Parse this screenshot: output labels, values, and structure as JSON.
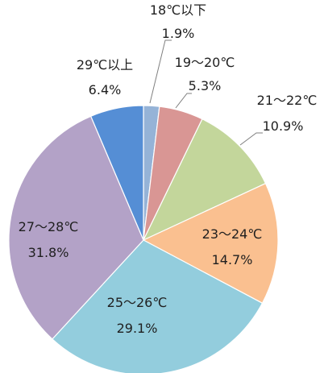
{
  "chart_data": {
    "type": "pie",
    "title": "",
    "slices": [
      {
        "label": "18℃以下",
        "value": 1.9,
        "value_text": "1.9%",
        "color": "#95B3D7"
      },
      {
        "label": "19～20℃",
        "value": 5.3,
        "value_text": "5.3%",
        "color": "#D99694"
      },
      {
        "label": "21～22℃",
        "value": 10.9,
        "value_text": "10.9%",
        "color": "#C3D69B"
      },
      {
        "label": "23～24℃",
        "value": 14.7,
        "value_text": "14.7%",
        "color": "#FAC090"
      },
      {
        "label": "25～26℃",
        "value": 29.1,
        "value_text": "29.1%",
        "color": "#93CDDD"
      },
      {
        "label": "27～28℃",
        "value": 31.8,
        "value_text": "31.8%",
        "color": "#B3A2C7"
      },
      {
        "label": "29℃以上",
        "value": 6.4,
        "value_text": "6.4%",
        "color": "#558ED5"
      }
    ],
    "start_angle": "12 o'clock",
    "direction": "clockwise",
    "legend": "none",
    "data_labels": "category name and percentage"
  }
}
